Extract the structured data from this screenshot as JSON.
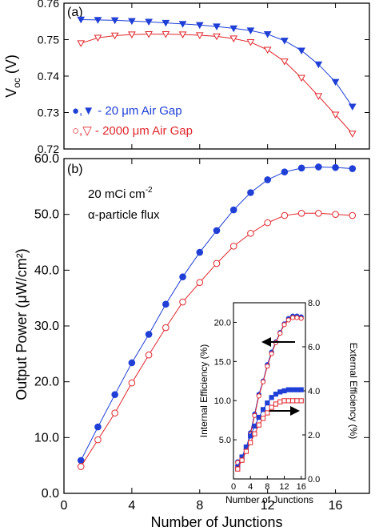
{
  "chart_data": [
    {
      "panel": "(a)",
      "type": "line",
      "ylabel_main": "V",
      "ylabel_sub": "oc",
      "ylabel_unit": " (V)",
      "ylim": [
        0.72,
        0.76
      ],
      "yticks": [
        0.72,
        0.73,
        0.74,
        0.75,
        0.76
      ],
      "ytick_labels": [
        "0.72",
        "0.73",
        "0.74",
        "0.75",
        "0.76"
      ],
      "xlim": [
        0,
        18
      ],
      "xticks": [
        0,
        4,
        8,
        12,
        16
      ],
      "x": [
        1,
        2,
        3,
        4,
        5,
        6,
        7,
        8,
        9,
        10,
        11,
        12,
        13,
        14,
        15,
        16,
        17
      ],
      "series": [
        {
          "legend": "●,▼ - 20 μm Air Gap",
          "color": "#1f3fd6",
          "marker": "filled-down-triangle",
          "values": [
            0.7555,
            0.7554,
            0.7553,
            0.7551,
            0.7549,
            0.7546,
            0.7543,
            0.754,
            0.7536,
            0.7531,
            0.7525,
            0.7515,
            0.7497,
            0.747,
            0.7432,
            0.7384,
            0.7316
          ]
        },
        {
          "legend": "○,▽ - 2000 μm Air Gap",
          "color": "#e0282d",
          "marker": "open-down-triangle",
          "values": [
            0.749,
            0.7505,
            0.7511,
            0.7514,
            0.7515,
            0.7515,
            0.7514,
            0.7512,
            0.7509,
            0.7503,
            0.7493,
            0.7472,
            0.744,
            0.7395,
            0.7345,
            0.7294,
            0.7242
          ]
        }
      ]
    },
    {
      "panel": "(b)",
      "type": "line",
      "annotation_line1": "20 mCi cm",
      "annotation_sup": "-2",
      "annotation_line2": "α-particle flux",
      "xlabel": "Number of Junctions",
      "ylabel": "Output Power (μW/cm²)",
      "xlim": [
        0,
        18
      ],
      "xticks": [
        0,
        4,
        8,
        12,
        16
      ],
      "xtick_labels": [
        "0",
        "4",
        "8",
        "12",
        "16"
      ],
      "ylim": [
        0,
        60
      ],
      "yticks": [
        0,
        10,
        20,
        30,
        40,
        50,
        60
      ],
      "ytick_labels": [
        "0.0",
        "10.0",
        "20.0",
        "30.0",
        "40.0",
        "50.0",
        "60.0"
      ],
      "x": [
        1,
        2,
        3,
        4,
        5,
        6,
        7,
        8,
        9,
        10,
        11,
        12,
        13,
        14,
        15,
        16,
        17
      ],
      "series": [
        {
          "color": "#1f3fd6",
          "marker": "filled-circle",
          "values": [
            5.9,
            11.9,
            17.7,
            23.4,
            28.5,
            33.9,
            38.8,
            43.2,
            47.1,
            50.8,
            53.9,
            56.2,
            57.6,
            58.3,
            58.5,
            58.4,
            58.2
          ]
        },
        {
          "color": "#e0282d",
          "marker": "open-circle",
          "values": [
            4.8,
            9.6,
            14.4,
            19.8,
            24.8,
            29.7,
            34.3,
            37.8,
            41.2,
            44.3,
            46.6,
            48.5,
            49.8,
            50.2,
            50.2,
            50.0,
            49.8
          ]
        }
      ]
    },
    {
      "panel": "inset",
      "type": "line",
      "xlabel": "Number of Junctions",
      "ylabel_left": "Internal Efficiency (%)",
      "ylabel_right": "External Efficiency (%)",
      "xlim": [
        0,
        17
      ],
      "xticks": [
        0,
        4,
        8,
        12,
        16
      ],
      "xtick_labels": [
        "0",
        "4",
        "8",
        "12",
        "16"
      ],
      "ylim_left": [
        0,
        22.5
      ],
      "yticks_left": [
        5,
        10,
        15,
        20
      ],
      "ytick_labels_left": [
        "5.0",
        "10.0",
        "15.0",
        "20.0"
      ],
      "ylim_right": [
        0,
        8
      ],
      "yticks_right": [
        0,
        2,
        4,
        6,
        8
      ],
      "ytick_labels_right": [
        "0.0",
        "2.0",
        "4.0",
        "6.0",
        "8.0"
      ],
      "x": [
        1,
        2,
        3,
        4,
        5,
        6,
        7,
        8,
        9,
        10,
        11,
        12,
        13,
        14,
        15,
        16
      ],
      "internal_series": [
        {
          "color": "#1f3fd6",
          "marker": "filled-circle",
          "values": [
            2.2,
            2.5,
            3.9,
            5.9,
            8.3,
            10.8,
            12.5,
            14.6,
            16.2,
            17.5,
            18.7,
            19.8,
            20.5,
            20.8,
            20.8,
            20.7
          ]
        },
        {
          "color": "#e0282d",
          "marker": "open-circle",
          "values": [
            2.1,
            2.4,
            3.7,
            5.7,
            8.1,
            10.6,
            12.4,
            14.4,
            16.0,
            17.4,
            18.6,
            19.7,
            20.3,
            20.6,
            20.6,
            20.5
          ]
        }
      ],
      "external_series": [
        {
          "color": "#1f3fd6",
          "marker": "filled-square",
          "values": [
            0.55,
            1.0,
            1.45,
            1.95,
            2.4,
            2.8,
            3.15,
            3.45,
            3.7,
            3.85,
            3.95,
            4.0,
            4.05,
            4.05,
            4.05,
            4.05
          ]
        },
        {
          "color": "#e0282d",
          "marker": "open-square",
          "values": [
            0.45,
            0.85,
            1.25,
            1.65,
            2.05,
            2.45,
            2.75,
            3.0,
            3.25,
            3.4,
            3.5,
            3.55,
            3.55,
            3.55,
            3.55,
            3.55
          ]
        }
      ]
    }
  ]
}
